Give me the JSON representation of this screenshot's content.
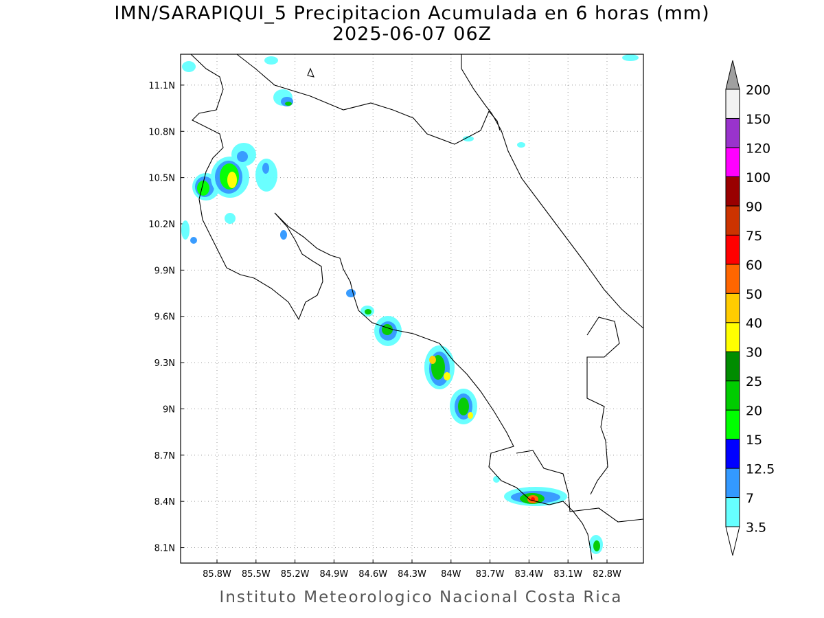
{
  "title": "IMN/SARAPIQUI_5 Precipitacion Acumulada en 6 horas (mm)",
  "subtitle": "2025-06-07 06Z",
  "footer": "Instituto Meteorologico Nacional Costa Rica",
  "map": {
    "lon_range": [
      -86.08,
      -82.52
    ],
    "lat_range": [
      8.0,
      11.3
    ],
    "grid": true,
    "lon_ticks": [
      {
        "value": -85.8,
        "label": "85.8W"
      },
      {
        "value": -85.5,
        "label": "85.5W"
      },
      {
        "value": -85.2,
        "label": "85.2W"
      },
      {
        "value": -84.9,
        "label": "84.9W"
      },
      {
        "value": -84.6,
        "label": "84.6W"
      },
      {
        "value": -84.3,
        "label": "84.3W"
      },
      {
        "value": -84.0,
        "label": "84W"
      },
      {
        "value": -83.7,
        "label": "83.7W"
      },
      {
        "value": -83.4,
        "label": "83.4W"
      },
      {
        "value": -83.1,
        "label": "83.1W"
      },
      {
        "value": -82.8,
        "label": "82.8W"
      }
    ],
    "lat_ticks": [
      {
        "value": 8.1,
        "label": "8.1N"
      },
      {
        "value": 8.4,
        "label": "8.4N"
      },
      {
        "value": 8.7,
        "label": "8.7N"
      },
      {
        "value": 9.0,
        "label": "9N"
      },
      {
        "value": 9.3,
        "label": "9.3N"
      },
      {
        "value": 9.6,
        "label": "9.6N"
      },
      {
        "value": 9.9,
        "label": "9.9N"
      },
      {
        "value": 10.2,
        "label": "10.2N"
      },
      {
        "value": 10.5,
        "label": "10.5N"
      },
      {
        "value": 10.8,
        "label": "10.8N"
      },
      {
        "value": 11.1,
        "label": "11.1N"
      }
    ]
  },
  "colorbar": {
    "levels": [
      3.5,
      7,
      12.5,
      15,
      20,
      25,
      30,
      40,
      50,
      60,
      75,
      90,
      100,
      120,
      150,
      200
    ],
    "colors": [
      "#66ffff",
      "#3399ff",
      "#0000ff",
      "#00ff00",
      "#00cc00",
      "#008c00",
      "#ffff00",
      "#ffcc00",
      "#ff6600",
      "#ff0000",
      "#cc3300",
      "#990000",
      "#ff00ff",
      "#9933cc",
      "#f2f2f2"
    ],
    "under_color": "#ffffff",
    "over_color": "#a0a0a0"
  }
}
